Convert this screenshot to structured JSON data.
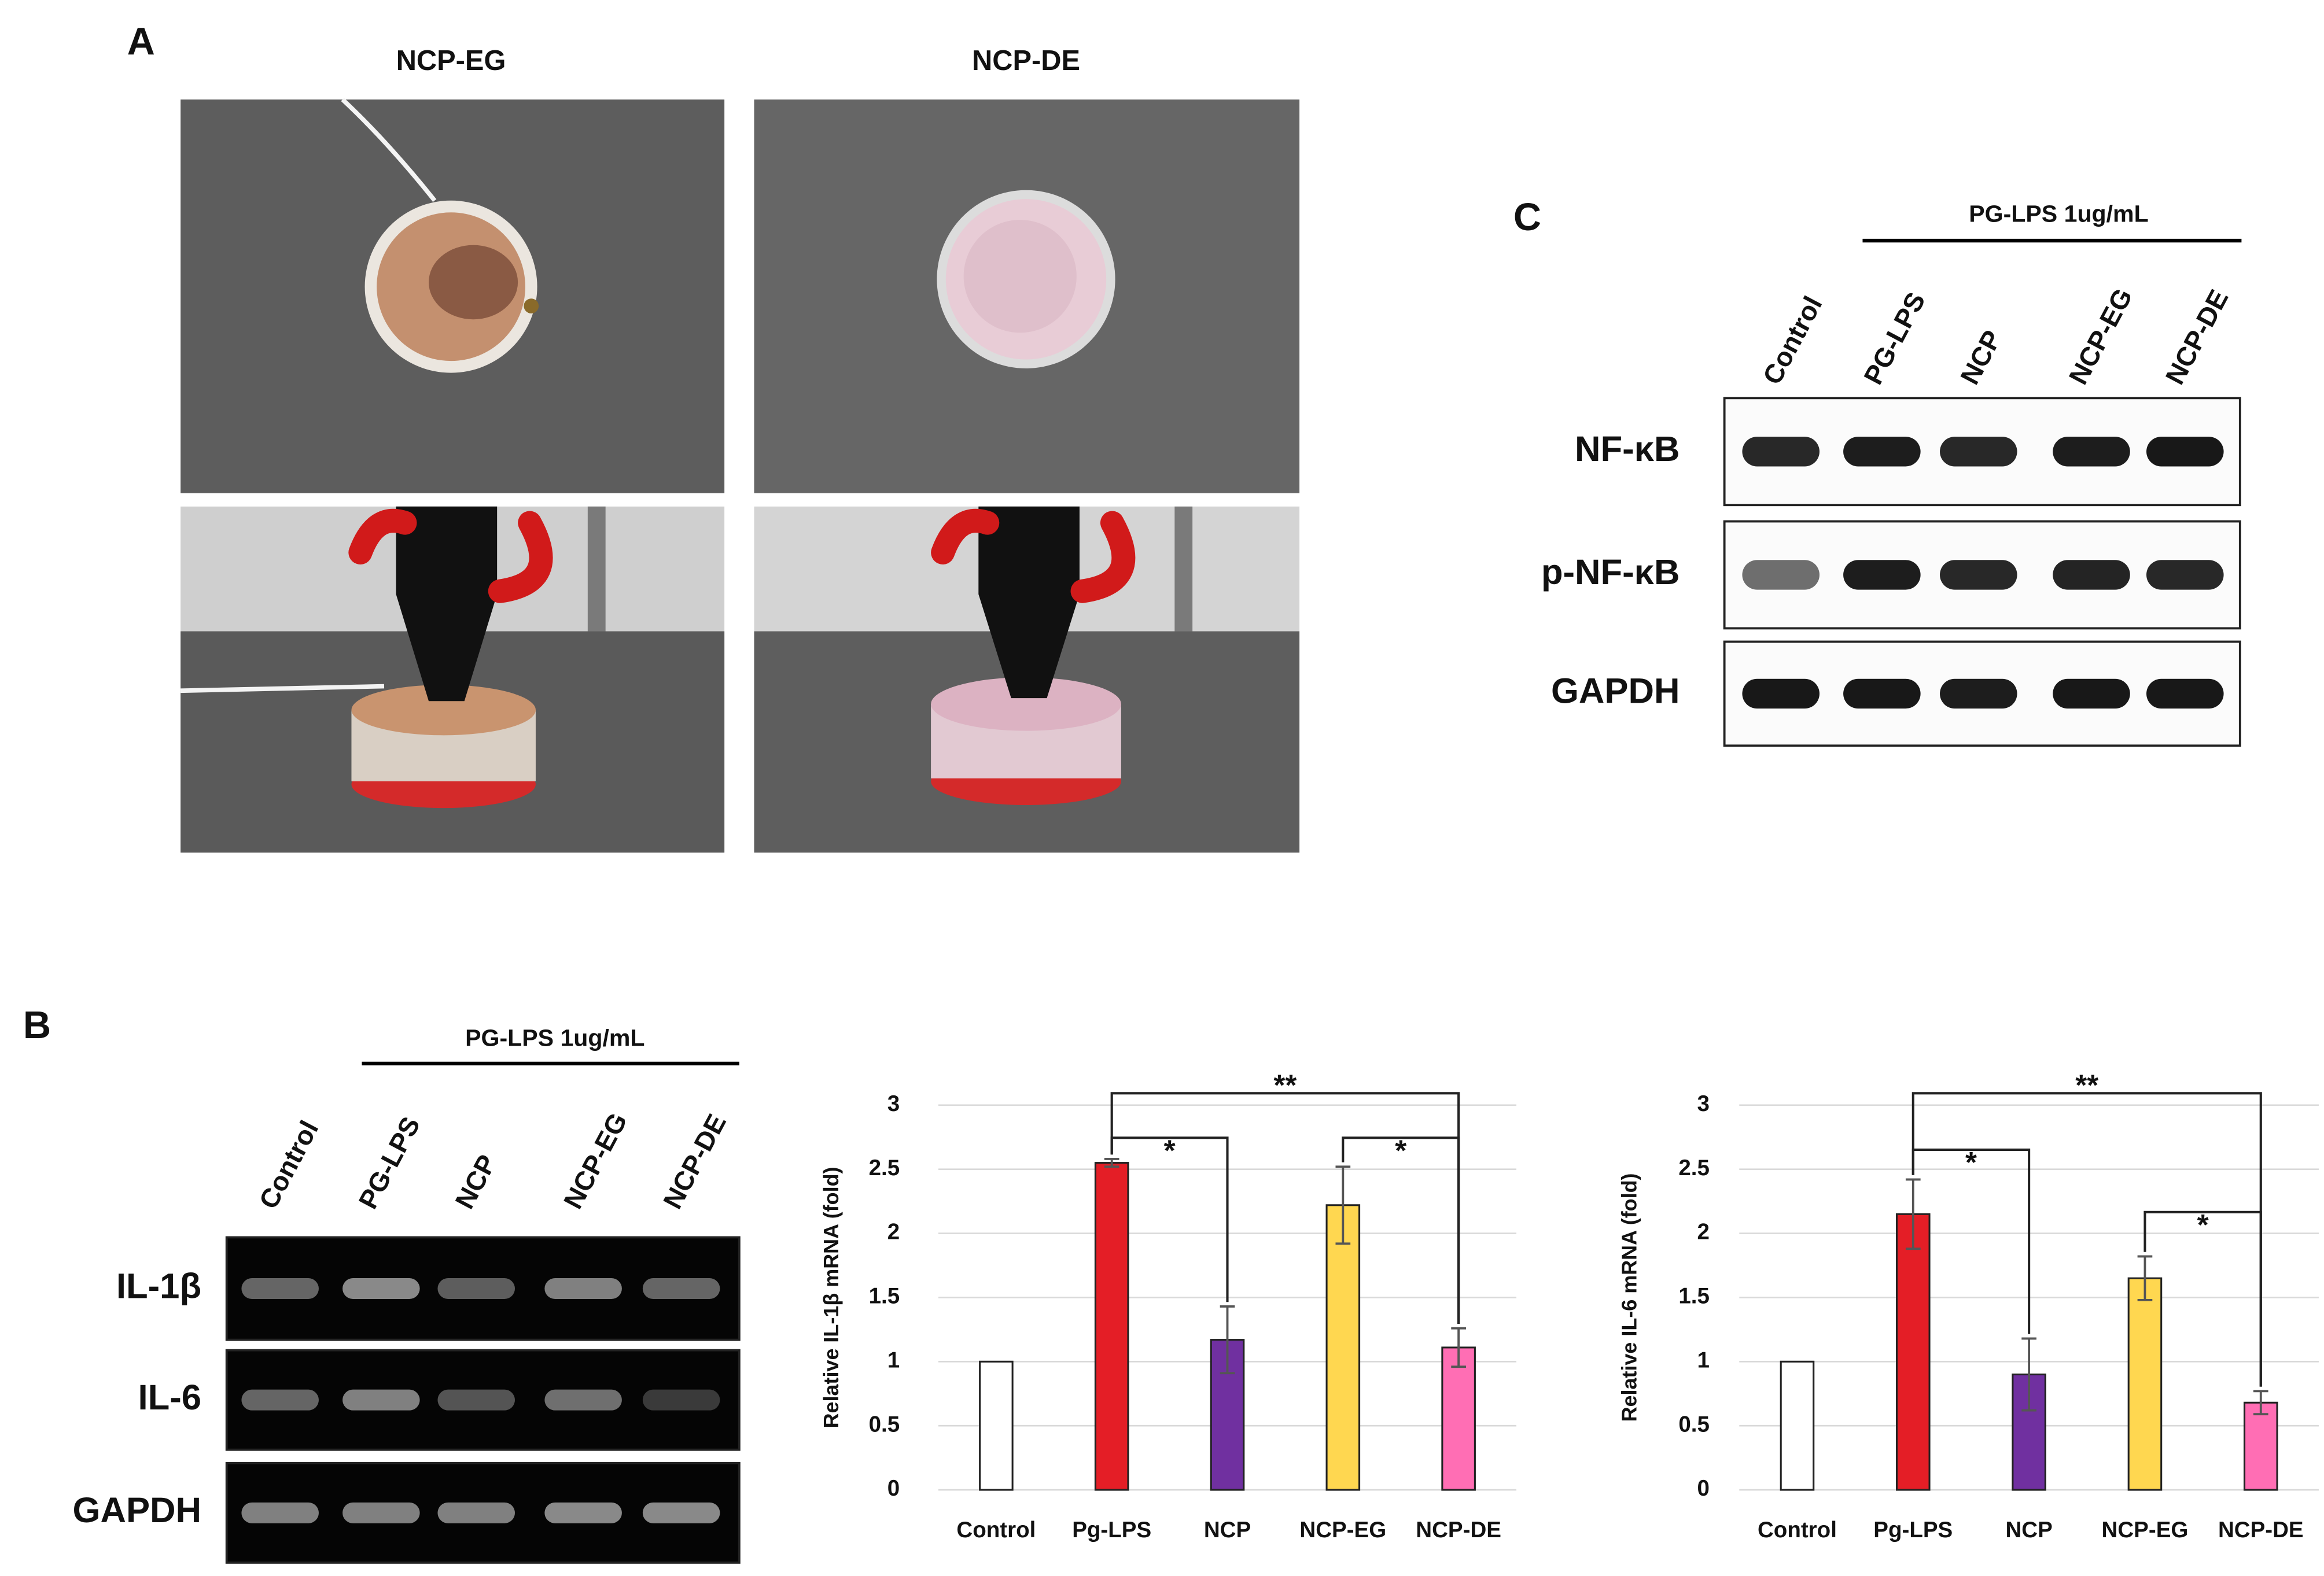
{
  "panel_labels": [
    "A",
    "B",
    "C"
  ],
  "panel_a": {
    "columns": [
      "NCP-EG",
      "NCP-DE"
    ]
  },
  "panel_b_gel": {
    "treatment": "PG-LPS 1ug/mL",
    "lanes": [
      "Control",
      "PG-LPS",
      "NCP",
      "NCP-EG",
      "NCP-DE"
    ],
    "rows": [
      "IL-1β",
      "IL-6",
      "GAPDH"
    ]
  },
  "panel_c_blot": {
    "treatment": "PG-LPS 1ug/mL",
    "lanes": [
      "Control",
      "PG-LPS",
      "NCP",
      "NCP-EG",
      "NCP-DE"
    ],
    "rows": [
      "NF-κB",
      "p-NF-κB",
      "GAPDH"
    ]
  },
  "chart_data": [
    {
      "type": "bar",
      "y_label": "Relative IL-1β  mRNA (fold)",
      "categories": [
        "Control",
        "Pg-LPS",
        "NCP",
        "NCP-EG",
        "NCP-DE"
      ],
      "values": [
        1,
        2.55,
        1.17,
        2.22,
        1.11
      ],
      "errors": [
        0,
        0.03,
        0.26,
        0.3,
        0.15
      ],
      "colors": [
        "#ffffff",
        "#e41e26",
        "#7030a0",
        "#ffd750",
        "#ff6eb4"
      ],
      "ylim": [
        0,
        3
      ],
      "yticks": [
        0,
        0.5,
        1,
        1.5,
        2,
        2.5,
        3
      ],
      "grid": true,
      "significance": [
        {
          "label": "**",
          "from": "Pg-LPS",
          "to": "NCP-DE"
        },
        {
          "label": "*",
          "from": "Pg-LPS",
          "to": "NCP"
        },
        {
          "label": "*",
          "from": "NCP-EG",
          "to": "NCP-DE"
        }
      ]
    },
    {
      "type": "bar",
      "y_label": "Relative IL-6 mRNA (fold)",
      "categories": [
        "Control",
        "Pg-LPS",
        "NCP",
        "NCP-EG",
        "NCP-DE"
      ],
      "values": [
        1,
        2.15,
        0.9,
        1.65,
        0.68
      ],
      "errors": [
        0,
        0.27,
        0.28,
        0.17,
        0.09
      ],
      "colors": [
        "#ffffff",
        "#e41e26",
        "#7030a0",
        "#ffd750",
        "#ff6eb4"
      ],
      "ylim": [
        0,
        3
      ],
      "yticks": [
        0,
        0.5,
        1,
        1.5,
        2,
        2.5,
        3
      ],
      "grid": true,
      "significance": [
        {
          "label": "**",
          "from": "Pg-LPS",
          "to": "NCP-DE"
        },
        {
          "label": "*",
          "from": "Pg-LPS",
          "to": "NCP"
        },
        {
          "label": "*",
          "from": "NCP-EG",
          "to": "NCP-DE"
        }
      ]
    }
  ]
}
